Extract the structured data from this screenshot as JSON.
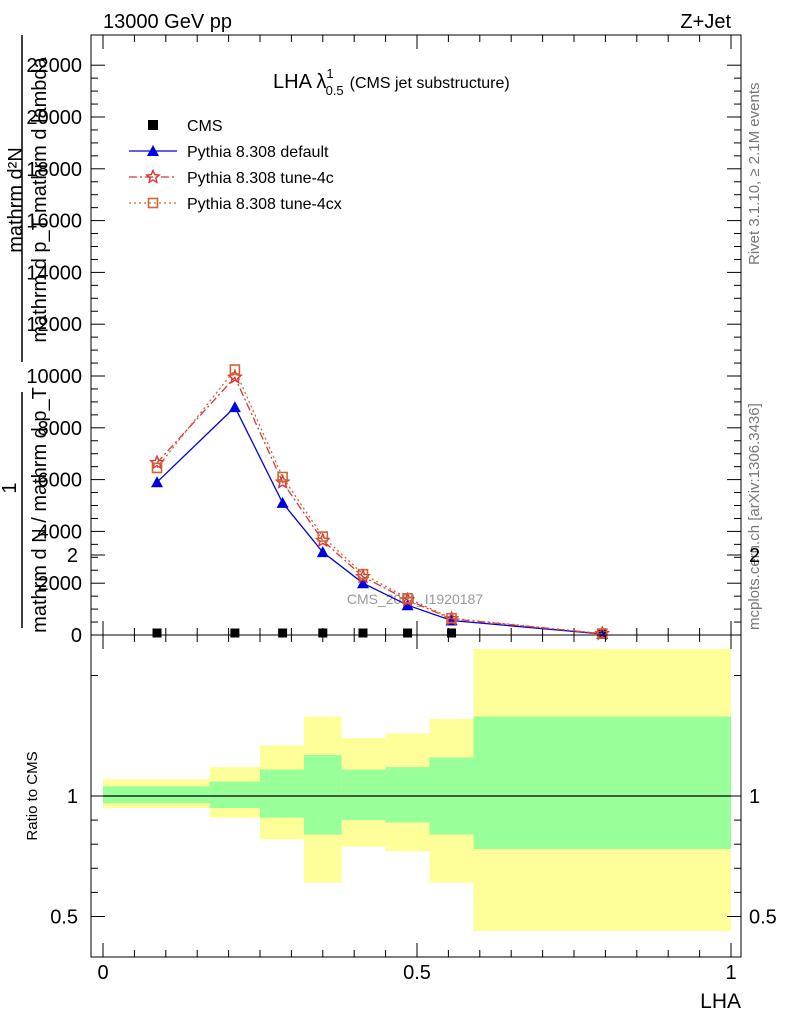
{
  "header": {
    "left": "13000 GeV pp",
    "right": "Z+Jet"
  },
  "side_labels": {
    "rivet": "Rivet 3.1.10, ≥ 2.1M events",
    "mcplots": "mcplots.cern.ch [arXiv:1306.3436]"
  },
  "watermark": "CMS_2021_I1920187",
  "chart_data": [
    {
      "type": "line",
      "title": {
        "main": "LHA λ",
        "sup": "1",
        "sub": "0.5",
        "suffix": "(CMS jet substructure)"
      },
      "ylabel": {
        "top": "mathrm d²N",
        "bottom": "mathrm d p_T mathrm d lambda",
        "one": "1",
        "norm": "mathrm d N / mathrm d p_T"
      },
      "xlim": [
        0,
        1
      ],
      "ylim": [
        0,
        23000
      ],
      "yticks": [
        0,
        2000,
        4000,
        6000,
        8000,
        10000,
        12000,
        14000,
        16000,
        18000,
        20000,
        22000
      ],
      "ytick_labels": [
        "0",
        "2000",
        "4000",
        "6000",
        "8000",
        "10000",
        "12000",
        "14000",
        "16000",
        "18000",
        "20000",
        "22000"
      ],
      "legend_position": "top-left",
      "series": [
        {
          "name": "CMS",
          "color": "#000000",
          "marker": "square-filled",
          "x": [
            0.086,
            0.21,
            0.286,
            0.35,
            0.414,
            0.485,
            0.555,
            0.795
          ],
          "y": [
            0,
            0,
            0,
            0,
            0,
            0,
            0,
            0
          ]
        },
        {
          "name": "Pythia 8.308 default",
          "color": "#0000dd",
          "marker": "triangle",
          "dash": "",
          "x": [
            0.086,
            0.21,
            0.286,
            0.35,
            0.414,
            0.485,
            0.555,
            0.795
          ],
          "y": [
            5900,
            8800,
            5100,
            3200,
            2000,
            1150,
            560,
            40
          ]
        },
        {
          "name": "Pythia 8.308 tune-4c",
          "color": "#dd3333",
          "marker": "star",
          "dash": "8,3,2,3",
          "x": [
            0.086,
            0.21,
            0.286,
            0.35,
            0.414,
            0.485,
            0.555,
            0.795
          ],
          "y": [
            6650,
            9950,
            5900,
            3650,
            2250,
            1350,
            620,
            50
          ]
        },
        {
          "name": "Pythia 8.308 tune-4cx",
          "color": "#cc6633",
          "marker": "square-open",
          "dash": "2,3",
          "x": [
            0.086,
            0.21,
            0.286,
            0.35,
            0.414,
            0.485,
            0.555,
            0.795
          ],
          "y": [
            6450,
            10250,
            6100,
            3800,
            2350,
            1420,
            650,
            55
          ]
        }
      ]
    },
    {
      "type": "area",
      "xlabel": "LHA",
      "ylabel": "Ratio to CMS",
      "xlim": [
        0,
        1
      ],
      "ylim": [
        0.4,
        2.3
      ],
      "xtick_labels": [
        "0",
        "0.5",
        "1"
      ],
      "ytick_labels": [
        "0.5",
        "1",
        "2"
      ],
      "bin_edges": [
        0,
        0.17,
        0.25,
        0.32,
        0.38,
        0.45,
        0.52,
        0.59,
        1.0
      ],
      "yellow_band": {
        "color": "#ffff99",
        "lo": [
          0.95,
          0.91,
          0.82,
          0.64,
          0.79,
          0.77,
          0.64,
          0.44
        ],
        "hi": [
          1.07,
          1.12,
          1.21,
          1.33,
          1.24,
          1.26,
          1.32,
          1.61
        ]
      },
      "green_band": {
        "color": "#99ff99",
        "lo": [
          0.97,
          0.95,
          0.91,
          0.84,
          0.9,
          0.89,
          0.84,
          0.78
        ],
        "hi": [
          1.04,
          1.06,
          1.11,
          1.17,
          1.11,
          1.12,
          1.16,
          1.33
        ]
      },
      "reference": 1
    }
  ]
}
